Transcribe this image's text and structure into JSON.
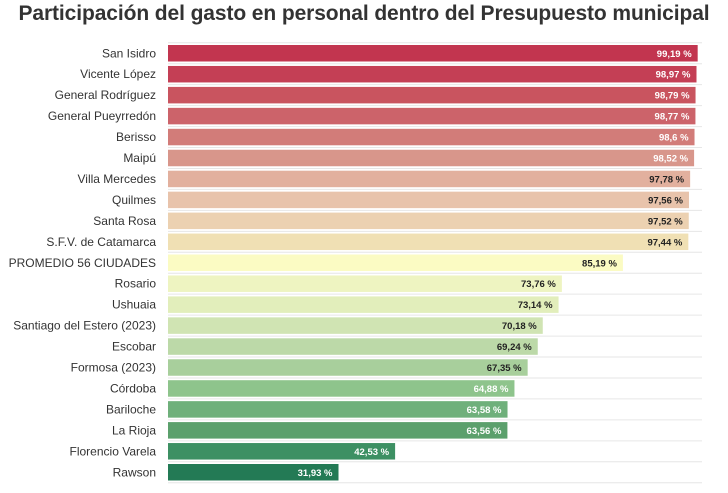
{
  "chart_data": {
    "type": "bar",
    "orientation": "horizontal",
    "title": "Participación del gasto en personal dentro del Presupuesto municipal",
    "xlabel": "",
    "ylabel": "",
    "xlim": [
      0,
      100
    ],
    "grid": true,
    "categories": [
      "San Isidro",
      "Vicente López",
      "General Rodríguez",
      "General Pueyrredón",
      "Berisso",
      "Maipú",
      "Villa Mercedes",
      "Quilmes",
      "Santa Rosa",
      "S.F.V. de Catamarca",
      "PROMEDIO 56 CIUDADES",
      "Rosario",
      "Ushuaia",
      "Santiago del Estero (2023)",
      "Escobar",
      "Formosa (2023)",
      "Córdoba",
      "Bariloche",
      "La Rioja",
      "Florencio Varela",
      "Rawson"
    ],
    "values": [
      99.19,
      98.97,
      98.79,
      98.77,
      98.6,
      98.52,
      97.78,
      97.56,
      97.52,
      97.44,
      85.19,
      73.76,
      73.14,
      70.18,
      69.24,
      67.35,
      64.88,
      63.58,
      63.56,
      42.53,
      31.93
    ],
    "value_labels": [
      "99,19 %",
      "98,97 %",
      "98,79 %",
      "98,77 %",
      "98,6 %",
      "98,52 %",
      "97,78 %",
      "97,56 %",
      "97,52 %",
      "97,44 %",
      "85,19 %",
      "73,76 %",
      "73,14 %",
      "70,18 %",
      "69,24 %",
      "67,35 %",
      "64,88 %",
      "63,58 %",
      "63,56 %",
      "42,53 %",
      "31,93 %"
    ],
    "colors": [
      "#c2354f",
      "#c43f55",
      "#c9545f",
      "#cc636a",
      "#d27c79",
      "#d8968b",
      "#e2b09e",
      "#e8c3ab",
      "#ecd1b1",
      "#f0e0b4",
      "#fbfbc3",
      "#eef4c1",
      "#e2eebb",
      "#d0e4b3",
      "#bcd9a8",
      "#a8cf9c",
      "#8ec48c",
      "#6fb07b",
      "#5ba06c",
      "#3d9063",
      "#237a55"
    ],
    "label_colors": [
      "#ffffff",
      "#ffffff",
      "#ffffff",
      "#ffffff",
      "#ffffff",
      "#ffffff",
      "#222222",
      "#222222",
      "#222222",
      "#222222",
      "#222222",
      "#222222",
      "#222222",
      "#222222",
      "#222222",
      "#222222",
      "#ffffff",
      "#ffffff",
      "#ffffff",
      "#ffffff",
      "#ffffff"
    ]
  }
}
